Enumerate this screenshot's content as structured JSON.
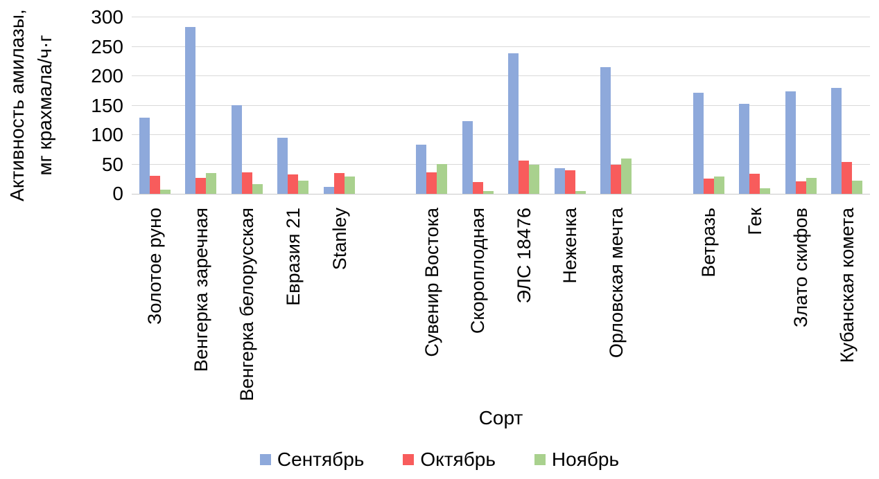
{
  "chart_data": {
    "type": "bar",
    "title": "",
    "xlabel": "Сорт",
    "ylabel_line1": "Активность амилазы,",
    "ylabel_line2": "мг крахмала/ч·г",
    "ylim": [
      0,
      300
    ],
    "ytick_step": 50,
    "yticks": [
      0,
      50,
      100,
      150,
      200,
      250,
      300
    ],
    "grid": true,
    "legend_position": "bottom",
    "gridline_color": "#d9d9d9",
    "categories": [
      "Золотое руно",
      "Венгерка заречная",
      "Венгерка белорусская",
      "Евразия 21",
      "Stanley",
      "",
      "Сувенир Востока",
      "Скороплодная",
      "ЭЛС 18476",
      "Неженка",
      "Орловская мечта",
      "",
      "Ветразь",
      "Гек",
      "Злато скифов",
      "Кубанская комета"
    ],
    "series": [
      {
        "name": "Сентябрь",
        "color": "#8ea9db",
        "values": [
          130,
          283,
          151,
          95,
          12,
          null,
          83,
          124,
          239,
          44,
          215,
          null,
          172,
          153,
          174,
          180
        ]
      },
      {
        "name": "Октябрь",
        "color": "#f85c5c",
        "values": [
          31,
          27,
          37,
          33,
          35,
          null,
          36,
          20,
          57,
          40,
          49,
          null,
          26,
          34,
          21,
          54
        ]
      },
      {
        "name": "Ноябрь",
        "color": "#a9d18e",
        "values": [
          7,
          35,
          17,
          22,
          29,
          null,
          51,
          5,
          49,
          5,
          60,
          null,
          29,
          9,
          27,
          22
        ]
      }
    ]
  }
}
